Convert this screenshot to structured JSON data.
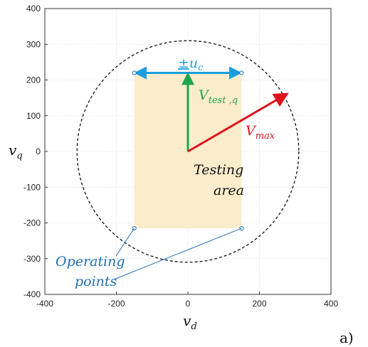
{
  "panel_label": "a)",
  "axes": {
    "x_var": "v",
    "x_sub": "d",
    "y_var": "v",
    "y_sub": "q",
    "xlim": [
      -400,
      400
    ],
    "ylim": [
      -400,
      400
    ],
    "x_ticks": [
      -400,
      -200,
      0,
      200,
      400
    ],
    "y_ticks": [
      400,
      300,
      200,
      100,
      0,
      -100,
      -200,
      -300,
      -400
    ],
    "x_tick_labels": [
      "-400",
      "-200",
      "0",
      "200",
      "400"
    ],
    "y_tick_labels": [
      "400",
      "300",
      "200",
      "100",
      "0",
      "-100",
      "-200",
      "-300",
      "-400"
    ],
    "grid": true
  },
  "diagram": {
    "testing_area": {
      "x": [
        -150,
        150
      ],
      "y": [
        -215,
        220
      ],
      "color": "#fbeccb"
    },
    "circle_radius": 310,
    "vmax_end": [
      275,
      160
    ],
    "vtest_end": [
      0,
      215
    ],
    "uc_range": [
      -150,
      150
    ],
    "uc_y": 220,
    "operating_points": [
      [
        -150,
        220
      ],
      [
        150,
        220
      ],
      [
        -150,
        -215
      ],
      [
        150,
        -215
      ]
    ]
  },
  "labels": {
    "uc_prefix": "±",
    "uc_var": "u",
    "uc_sub": "c",
    "vtest_var": "V",
    "vtest_sub": "test ,q",
    "vmax_var": "V",
    "vmax_sub": "max",
    "testing_area_line1": "Testing",
    "testing_area_line2": "area",
    "operating_line1": "Operating",
    "operating_line2": "points"
  },
  "colors": {
    "cyan": "#1a9ee0",
    "green": "#1aa64a",
    "red": "#e0111d",
    "operating": "#1f6fb5",
    "circle": "#111111"
  }
}
